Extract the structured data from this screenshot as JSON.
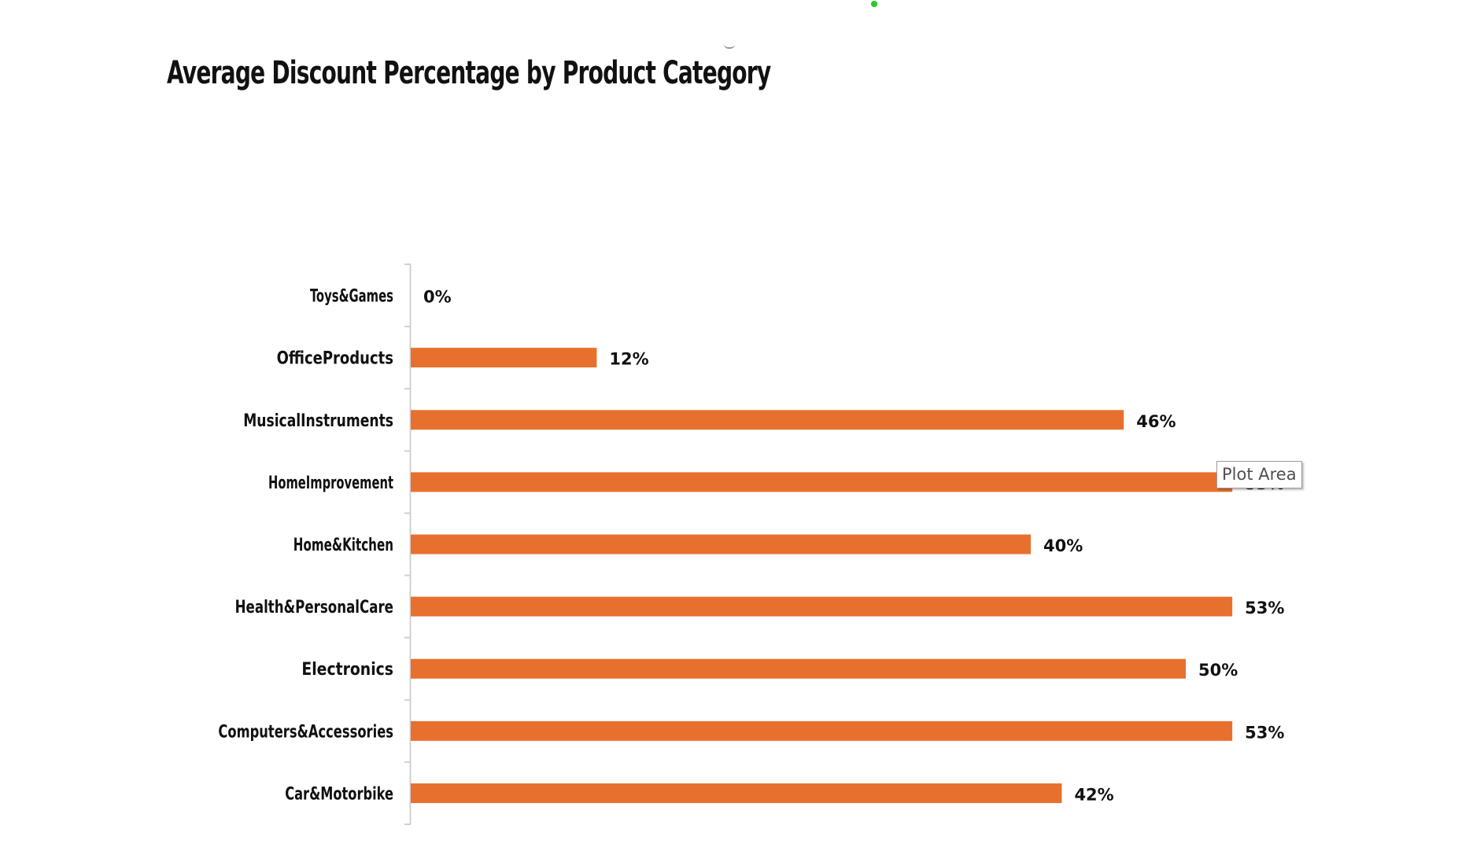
{
  "chart_data": {
    "type": "bar",
    "orientation": "horizontal",
    "title": "Average Discount Percentage by Product Category",
    "categories": [
      "Toys&Games",
      "OfficeProducts",
      "MusicalInstruments",
      "HomeImprovement",
      "Home&Kitchen",
      "Health&PersonalCare",
      "Electronics",
      "Computers&Accessories",
      "Car&Motorbike"
    ],
    "series": [
      {
        "values": [
          0,
          12,
          46,
          53,
          40,
          53,
          50,
          53,
          42
        ]
      }
    ],
    "data_labels": [
      "0%",
      "12%",
      "46%",
      "53%",
      "40%",
      "53%",
      "50%",
      "53%",
      "42%"
    ],
    "xlim": [
      0,
      60
    ],
    "x_axis_visible": false,
    "grid": false,
    "legend": "none",
    "bar_color": "#E8702F"
  },
  "tooltip": {
    "text": "Plot Area"
  },
  "colors": {
    "bar": "#E8702F",
    "axis": "#d0d0d0",
    "label_text": "#111111",
    "selection_handle": "#22cc22"
  }
}
